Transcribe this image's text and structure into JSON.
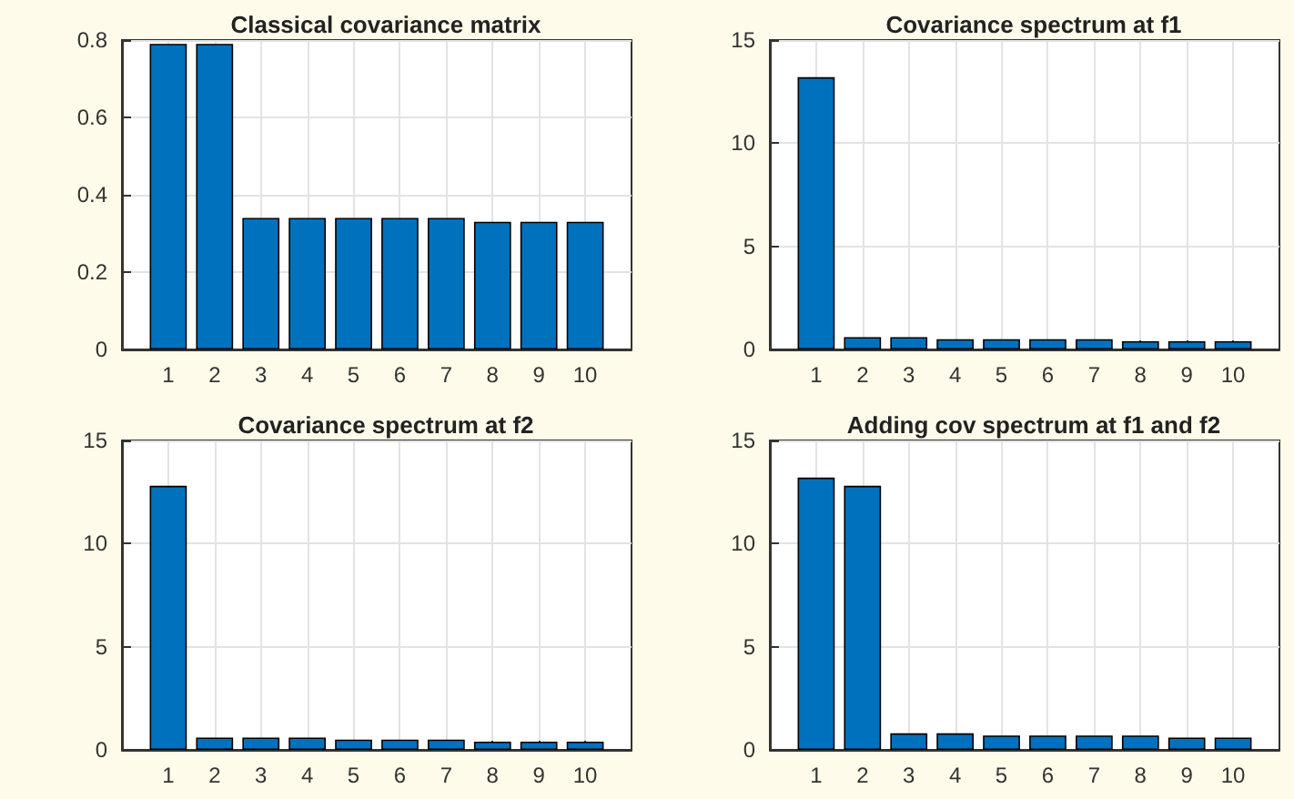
{
  "chart_data": [
    {
      "type": "bar",
      "title": "Classical covariance matrix",
      "x": [
        1,
        2,
        3,
        4,
        5,
        6,
        7,
        8,
        9,
        10
      ],
      "xlim": [
        0,
        11
      ],
      "xticks": [
        1,
        2,
        3,
        4,
        5,
        6,
        7,
        8,
        9,
        10
      ],
      "ylim": [
        0,
        0.8
      ],
      "yticks": [
        0,
        0.2,
        0.4,
        0.6,
        0.8
      ],
      "grid": true,
      "series": [
        {
          "color": "#0072bd",
          "values": [
            0.79,
            0.79,
            0.34,
            0.34,
            0.34,
            0.34,
            0.34,
            0.33,
            0.33,
            0.33
          ]
        }
      ]
    },
    {
      "type": "bar",
      "title": "Covariance spectrum at f1",
      "x": [
        1,
        2,
        3,
        4,
        5,
        6,
        7,
        8,
        9,
        10
      ],
      "xlim": [
        0,
        11
      ],
      "xticks": [
        1,
        2,
        3,
        4,
        5,
        6,
        7,
        8,
        9,
        10
      ],
      "ylim": [
        0,
        15
      ],
      "yticks": [
        0,
        5,
        10,
        15
      ],
      "grid": true,
      "series": [
        {
          "color": "#0072bd",
          "values": [
            13.2,
            0.6,
            0.6,
            0.5,
            0.5,
            0.5,
            0.5,
            0.4,
            0.4,
            0.4
          ]
        }
      ]
    },
    {
      "type": "bar",
      "title": "Covariance spectrum at f2",
      "x": [
        1,
        2,
        3,
        4,
        5,
        6,
        7,
        8,
        9,
        10
      ],
      "xlim": [
        0,
        11
      ],
      "xticks": [
        1,
        2,
        3,
        4,
        5,
        6,
        7,
        8,
        9,
        10
      ],
      "ylim": [
        0,
        15
      ],
      "yticks": [
        0,
        5,
        10,
        15
      ],
      "grid": true,
      "series": [
        {
          "color": "#0072bd",
          "values": [
            12.8,
            0.6,
            0.6,
            0.6,
            0.5,
            0.5,
            0.5,
            0.4,
            0.4,
            0.4
          ]
        }
      ]
    },
    {
      "type": "bar",
      "title": "Adding cov spectrum at f1 and f2",
      "x": [
        1,
        2,
        3,
        4,
        5,
        6,
        7,
        8,
        9,
        10
      ],
      "xlim": [
        0,
        11
      ],
      "xticks": [
        1,
        2,
        3,
        4,
        5,
        6,
        7,
        8,
        9,
        10
      ],
      "ylim": [
        0,
        15
      ],
      "yticks": [
        0,
        5,
        10,
        15
      ],
      "grid": true,
      "series": [
        {
          "color": "#0072bd",
          "values": [
            13.2,
            12.8,
            0.8,
            0.8,
            0.7,
            0.7,
            0.7,
            0.7,
            0.6,
            0.6
          ]
        }
      ]
    }
  ]
}
